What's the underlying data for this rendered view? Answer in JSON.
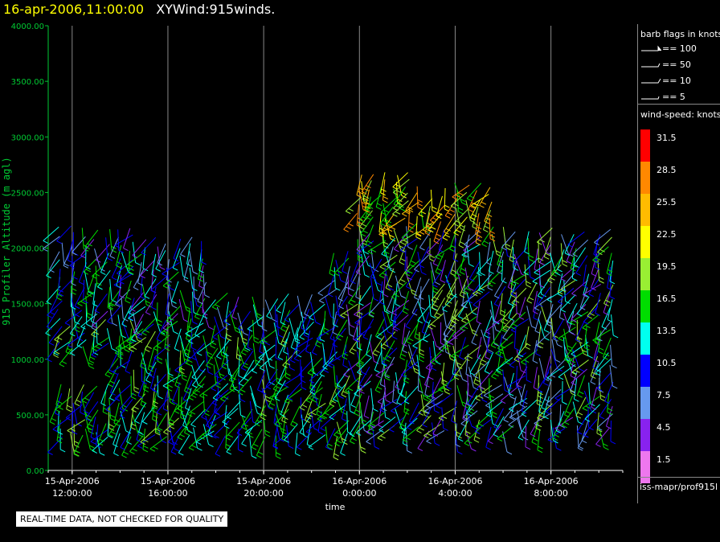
{
  "header": {
    "date": "16-apr-2006,11:00:00",
    "title": "XYWind:915winds."
  },
  "chart_data": {
    "type": "scatter",
    "title": "16-apr-2006,11:00:00  XYWind:915winds.",
    "xlabel": "time",
    "ylabel": "915 Profiler Altitude (m agl)",
    "ylim": [
      0,
      4000
    ],
    "y_ticks": [
      "4000.00",
      "3500.00",
      "3000.00",
      "2500.00",
      "2000.00",
      "1500.00",
      "1000.00",
      "500.00",
      "0.00"
    ],
    "x_ticks": [
      {
        "date": "15-Apr-2006",
        "time": "12:00:00"
      },
      {
        "date": "15-Apr-2006",
        "time": "16:00:00"
      },
      {
        "date": "15-Apr-2006",
        "time": "20:00:00"
      },
      {
        "date": "16-Apr-2006",
        "time": "0:00:00"
      },
      {
        "date": "16-Apr-2006",
        "time": "4:00:00"
      },
      {
        "date": "16-Apr-2006",
        "time": "8:00:00"
      }
    ],
    "xlim": [
      "15-Apr-2006 11:00",
      "16-Apr-2006 11:00"
    ],
    "grid": true,
    "series": [
      {
        "name": "barb columns",
        "x_hours_from_start": [
          0.5,
          1,
          1.5,
          2,
          2.5,
          3,
          3.5,
          4,
          4.5,
          5,
          5.5,
          6,
          6.5,
          7,
          7.5,
          8,
          8.5,
          9,
          9.5,
          10,
          10.5,
          11,
          11.5,
          12,
          12.5,
          13,
          13.5,
          14,
          14.5,
          15,
          15.5,
          16,
          16.5,
          17,
          17.5,
          18,
          18.5,
          19,
          19.5,
          20,
          20.5,
          21,
          21.5,
          22,
          22.5,
          23,
          23.5
        ]
      }
    ]
  },
  "legend": {
    "barb_title": "barb flags in knots",
    "barbs": [
      "== 100",
      "== 50",
      "== 10",
      "== 5"
    ],
    "speed_title": "wind-speed: knots",
    "speeds": [
      {
        "label": "31.5",
        "color": "#ff0000"
      },
      {
        "label": "28.5",
        "color": "#ff8800"
      },
      {
        "label": "25.5",
        "color": "#ffbb00"
      },
      {
        "label": "22.5",
        "color": "#ffff00"
      },
      {
        "label": "19.5",
        "color": "#99ee33"
      },
      {
        "label": "16.5",
        "color": "#00dd00"
      },
      {
        "label": "13.5",
        "color": "#00ffee"
      },
      {
        "label": "10.5",
        "color": "#0000ff"
      },
      {
        "label": "7.5",
        "color": "#6699ee"
      },
      {
        "label": "4.5",
        "color": "#8822ee"
      },
      {
        "label": "1.5",
        "color": "#ee77ee"
      }
    ],
    "source": "iss-mapr/prof915l"
  },
  "notice": "REAL-TIME DATA, NOT CHECKED FOR QUALITY"
}
